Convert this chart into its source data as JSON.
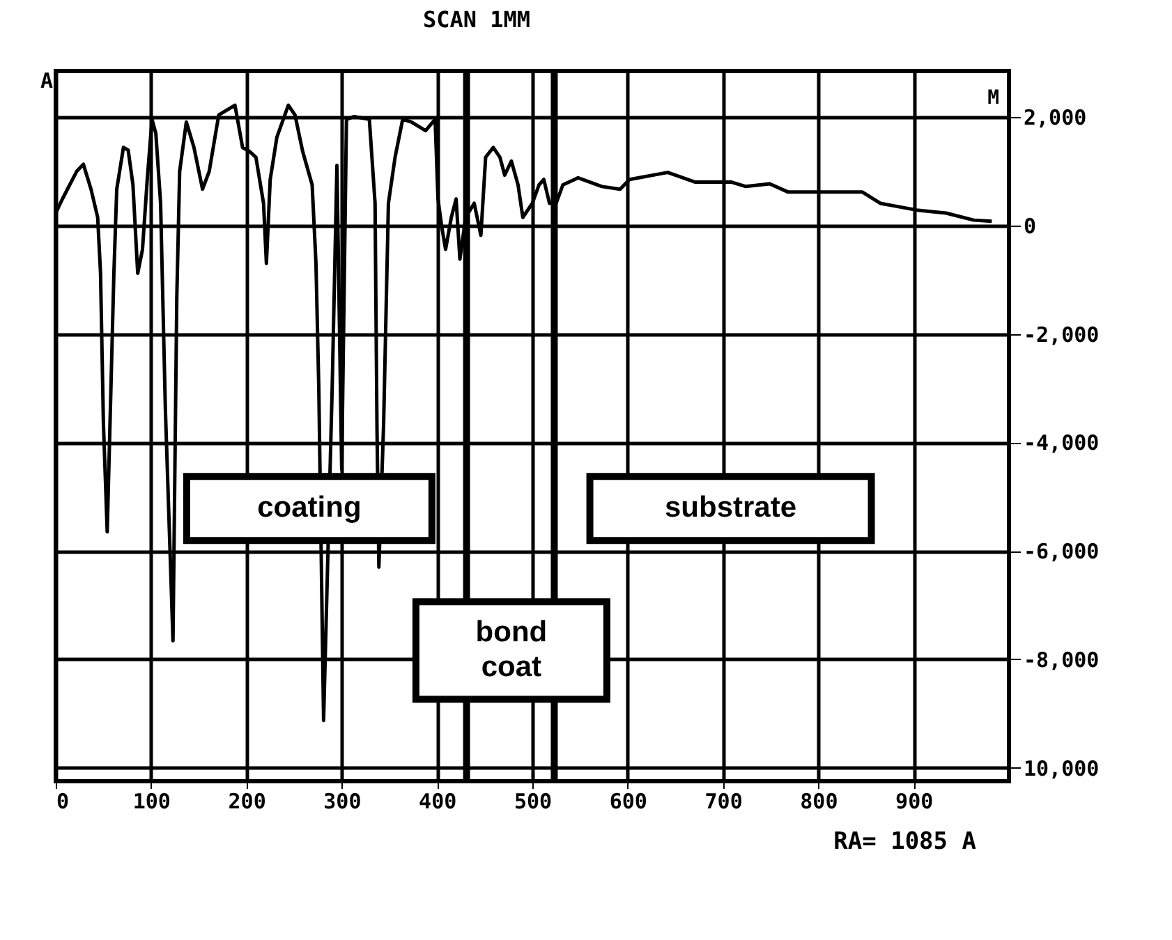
{
  "chart_data": {
    "type": "line",
    "title": "SCAN 1MM",
    "ylabel": "A",
    "x": [
      0,
      7,
      22,
      29,
      37,
      44,
      47,
      50,
      54,
      61,
      64,
      71,
      76,
      81,
      86,
      91,
      96,
      101,
      105,
      110,
      115,
      123,
      127,
      130,
      137,
      145,
      154,
      161,
      171,
      188,
      196,
      203,
      210,
      218,
      221,
      225,
      232,
      244,
      251,
      259,
      269,
      273,
      276,
      281,
      290,
      295,
      300,
      305,
      313,
      329,
      335,
      337,
      339,
      344,
      349,
      356,
      364,
      373,
      388,
      398,
      401,
      405,
      409,
      415,
      420,
      424,
      430,
      439,
      446,
      451,
      459,
      466,
      471,
      478,
      485,
      490,
      500,
      507,
      512,
      518,
      525,
      532,
      548,
      573,
      592,
      602,
      642,
      671,
      709,
      724,
      749,
      768,
      797,
      846,
      865,
      905,
      934,
      963,
      982
    ],
    "series": [
      {
        "color": "#000000",
        "values": [
          230,
          490,
          1000,
          1130,
          670,
          150,
          -880,
          -3640,
          -5650,
          -880,
          670,
          1440,
          1390,
          750,
          -880,
          -440,
          850,
          1960,
          1700,
          410,
          -3380,
          -7660,
          -1320,
          1000,
          1910,
          1440,
          670,
          1000,
          2040,
          2220,
          1440,
          1370,
          1260,
          410,
          -700,
          850,
          1630,
          2220,
          2040,
          1370,
          750,
          -700,
          -3020,
          -9130,
          -3000,
          1110,
          -4500,
          1960,
          2010,
          1960,
          410,
          -3720,
          -6300,
          -3640,
          410,
          1260,
          1960,
          1910,
          1750,
          1960,
          490,
          -30,
          -440,
          150,
          490,
          -620,
          150,
          410,
          -180,
          1260,
          1440,
          1260,
          930,
          1190,
          750,
          150,
          410,
          750,
          850,
          410,
          410,
          750,
          880,
          720,
          670,
          850,
          980,
          800,
          800,
          720,
          770,
          620,
          620,
          620,
          410,
          280,
          230,
          100,
          80
        ]
      }
    ],
    "xlim": [
      0,
      1000
    ],
    "xticks": [
      0,
      100,
      200,
      300,
      400,
      500,
      600,
      700,
      800,
      900
    ],
    "ylim": [
      -10250,
      2850
    ],
    "yticks": [
      {
        "value": 2000,
        "label": "2,000"
      },
      0,
      {
        "value": -2000,
        "label": "-2,000"
      },
      {
        "value": -4000,
        "label": "-4,000"
      },
      {
        "value": -6000,
        "label": "-6,000"
      },
      {
        "value": -8000,
        "label": "-8,000"
      },
      {
        "value": -10000,
        "label": "10,000"
      }
    ],
    "grid": true,
    "ref_lines": [
      {
        "axis": "x",
        "value": 431
      },
      {
        "axis": "x",
        "value": 523
      }
    ],
    "annotations": [
      "coating",
      "substrate",
      "bond coat",
      "M",
      "RA= 1085 A"
    ]
  }
}
